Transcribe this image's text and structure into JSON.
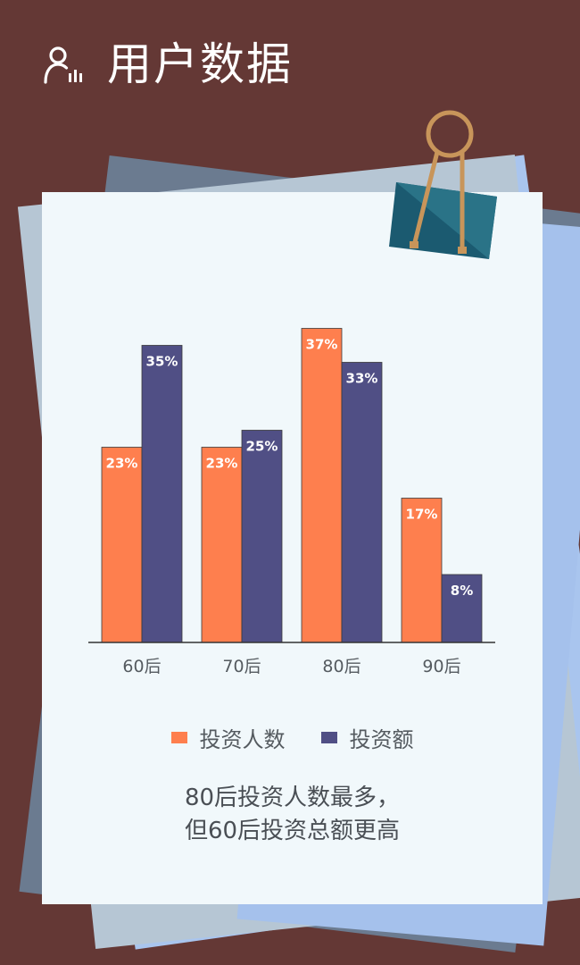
{
  "header": {
    "title": "用户数据",
    "icon": "user-chart-icon"
  },
  "colors": {
    "background": "#643835",
    "card": "#f1f8fb",
    "series1": "#fe7f4e",
    "series2": "#504f85",
    "clip_body": "#1b5a70",
    "clip_wire": "#c8955a"
  },
  "chart_data": {
    "type": "bar",
    "categories": [
      "60后",
      "70后",
      "80后",
      "90后"
    ],
    "series": [
      {
        "name": "投资人数",
        "values": [
          23,
          23,
          37,
          17
        ],
        "labels": [
          "23%",
          "23%",
          "37%",
          "17%"
        ],
        "color": "#fe7f4e"
      },
      {
        "name": "投资额",
        "values": [
          35,
          25,
          33,
          8
        ],
        "labels": [
          "35%",
          "25%",
          "33%",
          "8%"
        ],
        "color": "#504f85"
      }
    ],
    "ylim": [
      0,
      40
    ],
    "grid": false,
    "legend": "bottom",
    "unit": "%"
  },
  "caption": {
    "line1": "80后投资人数最多，",
    "line2": "但60后投资总额更高"
  }
}
